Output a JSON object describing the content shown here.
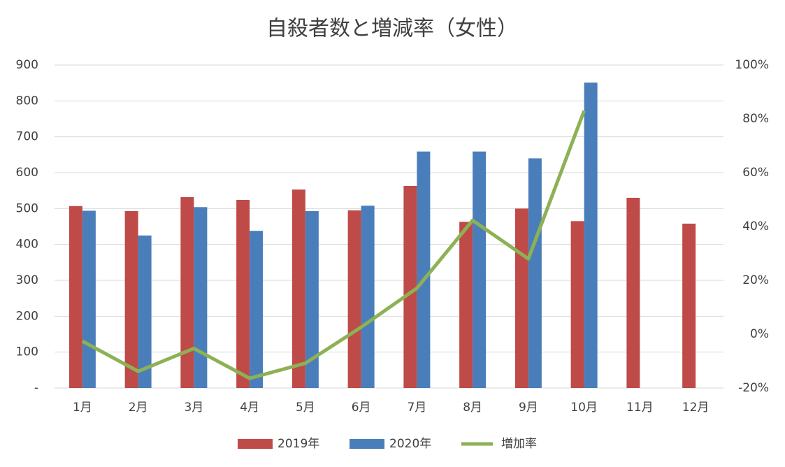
{
  "chart_data": {
    "type": "bar",
    "title": "自殺者数と増減率（女性）",
    "categories": [
      "1月",
      "2月",
      "3月",
      "4月",
      "5月",
      "6月",
      "7月",
      "8月",
      "9月",
      "10月",
      "11月",
      "12月"
    ],
    "series": [
      {
        "name": "2019年",
        "type": "bar",
        "color": "#be4b48",
        "values": [
          507,
          493,
          532,
          524,
          553,
          495,
          563,
          463,
          500,
          465,
          530,
          458
        ]
      },
      {
        "name": "2020年",
        "type": "bar",
        "color": "#4a7ebb",
        "values": [
          494,
          425,
          504,
          438,
          493,
          508,
          659,
          659,
          640,
          851,
          null,
          null
        ]
      },
      {
        "name": "増加率",
        "type": "line",
        "axis": "y2",
        "color": "#8db155",
        "values": [
          -2.6,
          -13.8,
          -5.3,
          -16.4,
          -10.8,
          2.6,
          17.1,
          42.3,
          28.0,
          83.0,
          null,
          null
        ]
      }
    ],
    "ylim": [
      0,
      900
    ],
    "yticks": [
      {
        "value": 0,
        "label": "-"
      },
      100,
      200,
      300,
      400,
      500,
      600,
      700,
      800,
      900
    ],
    "y2lim": [
      -20,
      100
    ],
    "y2ticks": [
      {
        "value": -20,
        "label": "-20%"
      },
      {
        "value": 0,
        "label": "0%"
      },
      {
        "value": 20,
        "label": "20%"
      },
      {
        "value": 40,
        "label": "40%"
      },
      {
        "value": 60,
        "label": "60%"
      },
      {
        "value": 80,
        "label": "80%"
      },
      {
        "value": 100,
        "label": "100%"
      }
    ],
    "grid": true,
    "legend": "bottom"
  }
}
